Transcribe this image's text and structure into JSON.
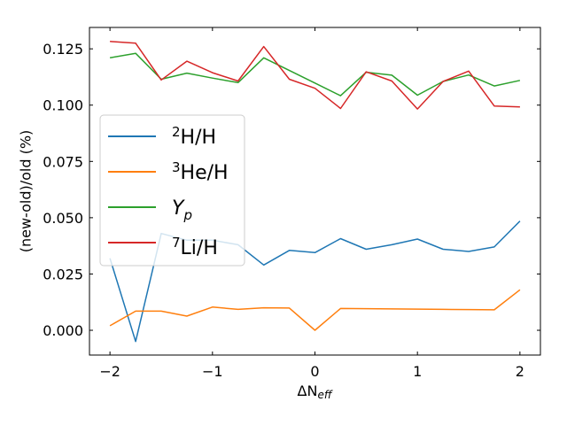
{
  "chart_data": {
    "type": "line",
    "xlabel": {
      "main": "ΔN",
      "sub": "eff"
    },
    "ylabel": "(new-old)/old (%)",
    "xlim": [
      -2.2,
      2.2
    ],
    "ylim": [
      -0.011,
      0.1345
    ],
    "xticks": [
      -2,
      -1,
      0,
      1,
      2
    ],
    "xtick_labels": [
      "−2",
      "−1",
      "0",
      "1",
      "2"
    ],
    "yticks": [
      0.0,
      0.025,
      0.05,
      0.075,
      0.1,
      0.125
    ],
    "ytick_labels": [
      "0.000",
      "0.025",
      "0.050",
      "0.075",
      "0.100",
      "0.125"
    ],
    "grid": false,
    "legend_position": "center-left",
    "x": [
      -2.0,
      -1.75,
      -1.5,
      -1.25,
      -1.0,
      -0.75,
      -0.5,
      -0.25,
      0.0,
      0.25,
      0.5,
      0.75,
      1.0,
      1.25,
      1.5,
      1.75,
      2.0
    ],
    "series": [
      {
        "name": "²H/H",
        "legend": {
          "sup": "2",
          "text": "H/H"
        },
        "color": "#1f77b4",
        "values": [
          0.032,
          -0.005,
          0.043,
          0.04,
          0.04,
          0.038,
          0.029,
          0.0355,
          0.0345,
          0.0407,
          0.036,
          0.038,
          0.0405,
          0.036,
          0.035,
          0.037,
          0.0485
        ]
      },
      {
        "name": "³He/H",
        "legend": {
          "sup": "3",
          "text": "He/H"
        },
        "color": "#ff7f0e",
        "values": [
          0.002,
          0.0085,
          0.0085,
          0.0063,
          0.0103,
          0.0093,
          0.01,
          0.0099,
          0.0,
          0.0097,
          0.0096,
          0.0095,
          0.0094,
          0.0093,
          0.0092,
          0.0091,
          0.018
        ]
      },
      {
        "name": "Yp",
        "legend": {
          "italic": "Y",
          "sub": "p"
        },
        "color": "#2ca02c",
        "values": [
          0.121,
          0.123,
          0.1115,
          0.1142,
          0.112,
          0.11,
          0.121,
          0.1154,
          0.1098,
          0.1042,
          0.1146,
          0.1133,
          0.1044,
          0.1105,
          0.1134,
          0.1085,
          0.111
        ]
      },
      {
        "name": "⁷Li/H",
        "legend": {
          "sup": "7",
          "text": "Li/H"
        },
        "color": "#d62728",
        "values": [
          0.1283,
          0.1275,
          0.1112,
          0.1195,
          0.1144,
          0.1107,
          0.126,
          0.1115,
          0.1075,
          0.0985,
          0.1148,
          0.1107,
          0.0983,
          0.1105,
          0.1151,
          0.0996,
          0.0992
        ]
      }
    ]
  }
}
